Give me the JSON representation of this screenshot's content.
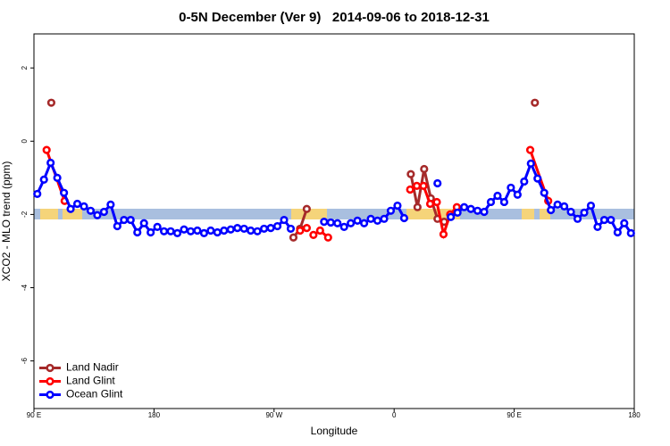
{
  "chart_data": {
    "type": "line",
    "title": "0-5N December (Ver 9)   2014-09-06 to 2018-12-31",
    "x_label": "Longitude",
    "y_label": "XCO2 - MLO trend (ppm)",
    "xlim": [
      90,
      540
    ],
    "ylim": [
      -7.3,
      2.93
    ],
    "xticks": [
      {
        "value": 90,
        "label": "90 E"
      },
      180,
      {
        "value": 270,
        "label": "90 W"
      },
      {
        "value": 360,
        "label": "0"
      },
      {
        "value": 450,
        "label": "90 E"
      },
      180
    ],
    "yticks": [
      -6,
      -4,
      -2,
      0,
      2
    ],
    "legend": "bottom-left",
    "series": [
      {
        "name": "Land Nadir",
        "color": "#a52a2a",
        "x": [
          103,
          null,
          284.5,
          289.5,
          294.5,
          null,
          372.5,
          377.5,
          382.5,
          387.5,
          392.5,
          397.5,
          null,
          465.5
        ],
        "values": [
          1.05,
          null,
          -2.63,
          -2.39,
          -1.85,
          null,
          -0.9,
          -1.8,
          -0.76,
          -1.56,
          -2.12,
          -2.2,
          null,
          1.05
        ]
      },
      {
        "name": "Land Glint",
        "color": "#ff0000",
        "x": [
          99.5,
          113,
          null,
          289.5,
          294.5,
          null,
          299.5,
          304.5,
          310.5,
          null,
          372,
          377,
          382,
          387,
          392,
          397,
          402,
          407,
          null,
          462,
          475.5
        ],
        "values": [
          -0.24,
          -1.63,
          null,
          -2.44,
          -2.37,
          null,
          -2.56,
          -2.44,
          -2.63,
          null,
          -1.32,
          -1.22,
          -1.22,
          -1.71,
          -1.66,
          -2.54,
          -2.0,
          -1.8,
          null,
          -0.24,
          -1.63
        ]
      },
      {
        "name": "Ocean Glint",
        "color": "#0000ff",
        "x": [
          92.5,
          97.5,
          102.5,
          107.5,
          112.5,
          117.5,
          122.5,
          127.5,
          132.5,
          137.5,
          142.5,
          147.5,
          152.5,
          157.5,
          162.5,
          167.5,
          172.5,
          177.5,
          182.5,
          187.5,
          192.5,
          197.5,
          202.5,
          207.5,
          212.5,
          217.5,
          222.5,
          227.5,
          232.5,
          237.5,
          242.5,
          247.5,
          252.5,
          257.5,
          262.5,
          267.5,
          272.5,
          277.5,
          282.5,
          null,
          307.5,
          312.5,
          317.5,
          322.5,
          327.5,
          332.5,
          337.5,
          342.5,
          347.5,
          352.5,
          357.5,
          362.5,
          367.5,
          null,
          392.5,
          null,
          402.5,
          407.5,
          412.5,
          417.5,
          422.5,
          427.5,
          432.5,
          437.5,
          442.5,
          447.5,
          452.5,
          457.5,
          462.5,
          467.5,
          472.5,
          477.5,
          482.5,
          487.5,
          492.5,
          497.5,
          502.5,
          507.5,
          512.5,
          517.5,
          522.5,
          527.5,
          532.5,
          537.5
        ],
        "values": [
          -1.44,
          -1.05,
          -0.59,
          -1.0,
          -1.41,
          -1.85,
          -1.71,
          -1.78,
          -1.9,
          -2.02,
          -1.93,
          -1.73,
          -2.32,
          -2.15,
          -2.15,
          -2.49,
          -2.24,
          -2.49,
          -2.34,
          -2.46,
          -2.46,
          -2.51,
          -2.41,
          -2.46,
          -2.44,
          -2.51,
          -2.44,
          -2.49,
          -2.44,
          -2.41,
          -2.37,
          -2.39,
          -2.44,
          -2.46,
          -2.39,
          -2.37,
          -2.32,
          -2.15,
          -2.39,
          null,
          -2.2,
          -2.22,
          -2.24,
          -2.34,
          -2.24,
          -2.17,
          -2.24,
          -2.12,
          -2.17,
          -2.12,
          -1.9,
          -1.76,
          -2.1,
          null,
          -1.15,
          null,
          -2.07,
          -1.95,
          -1.8,
          -1.85,
          -1.9,
          -1.93,
          -1.66,
          -1.49,
          -1.66,
          -1.27,
          -1.46,
          -1.1,
          -0.61,
          -1.02,
          -1.41,
          -1.88,
          -1.73,
          -1.78,
          -1.93,
          -2.12,
          -1.95,
          -1.76,
          -2.34,
          -2.15,
          -2.15,
          -2.49,
          -2.24,
          -2.51
        ]
      }
    ]
  }
}
